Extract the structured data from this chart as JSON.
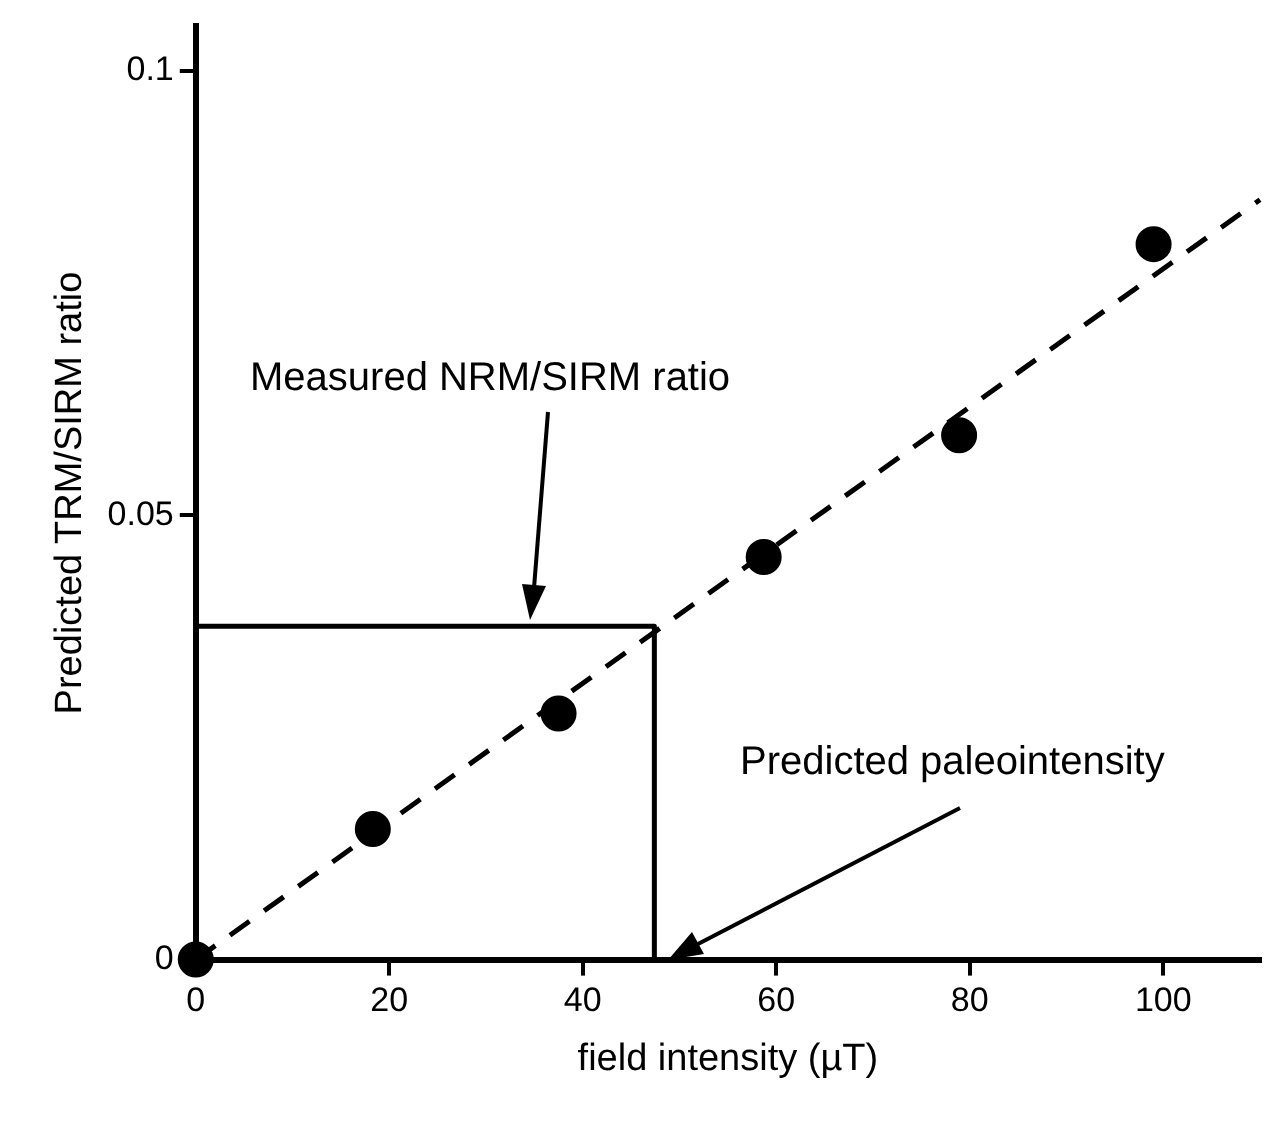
{
  "chart_data": {
    "type": "scatter",
    "xlabel": "field intensity (µT)",
    "ylabel": "Predicted TRM/SIRM ratio",
    "xlim": [
      0,
      110
    ],
    "xticks": [
      0,
      20,
      40,
      60,
      80,
      100
    ],
    "ylim": [
      0,
      0.105
    ],
    "yticks": [
      0,
      0.05,
      0.1
    ],
    "grid": false,
    "legend": false,
    "series": [
      {
        "color": "#000000",
        "marker": "circle",
        "x": [
          0,
          18.3,
          37.5,
          58.7,
          78.9,
          99
        ],
        "values": [
          0,
          0.0147,
          0.0277,
          0.0453,
          0.059,
          0.0805
        ]
      },
      {
        "type": "line",
        "color": "#000000",
        "marker": "none",
        "line_style": "dashed",
        "x": [
          0,
          110
        ],
        "values": [
          0,
          0.0855
        ]
      },
      {
        "type": "line",
        "color": "#000000",
        "marker": "none",
        "line_style": "solid",
        "x": [
          0,
          47.4,
          47.4
        ],
        "values": [
          0.0375,
          0.0375,
          0
        ]
      }
    ],
    "annotations": [
      "Measured NRM/SIRM ratio",
      "Predicted paleointensity"
    ]
  }
}
